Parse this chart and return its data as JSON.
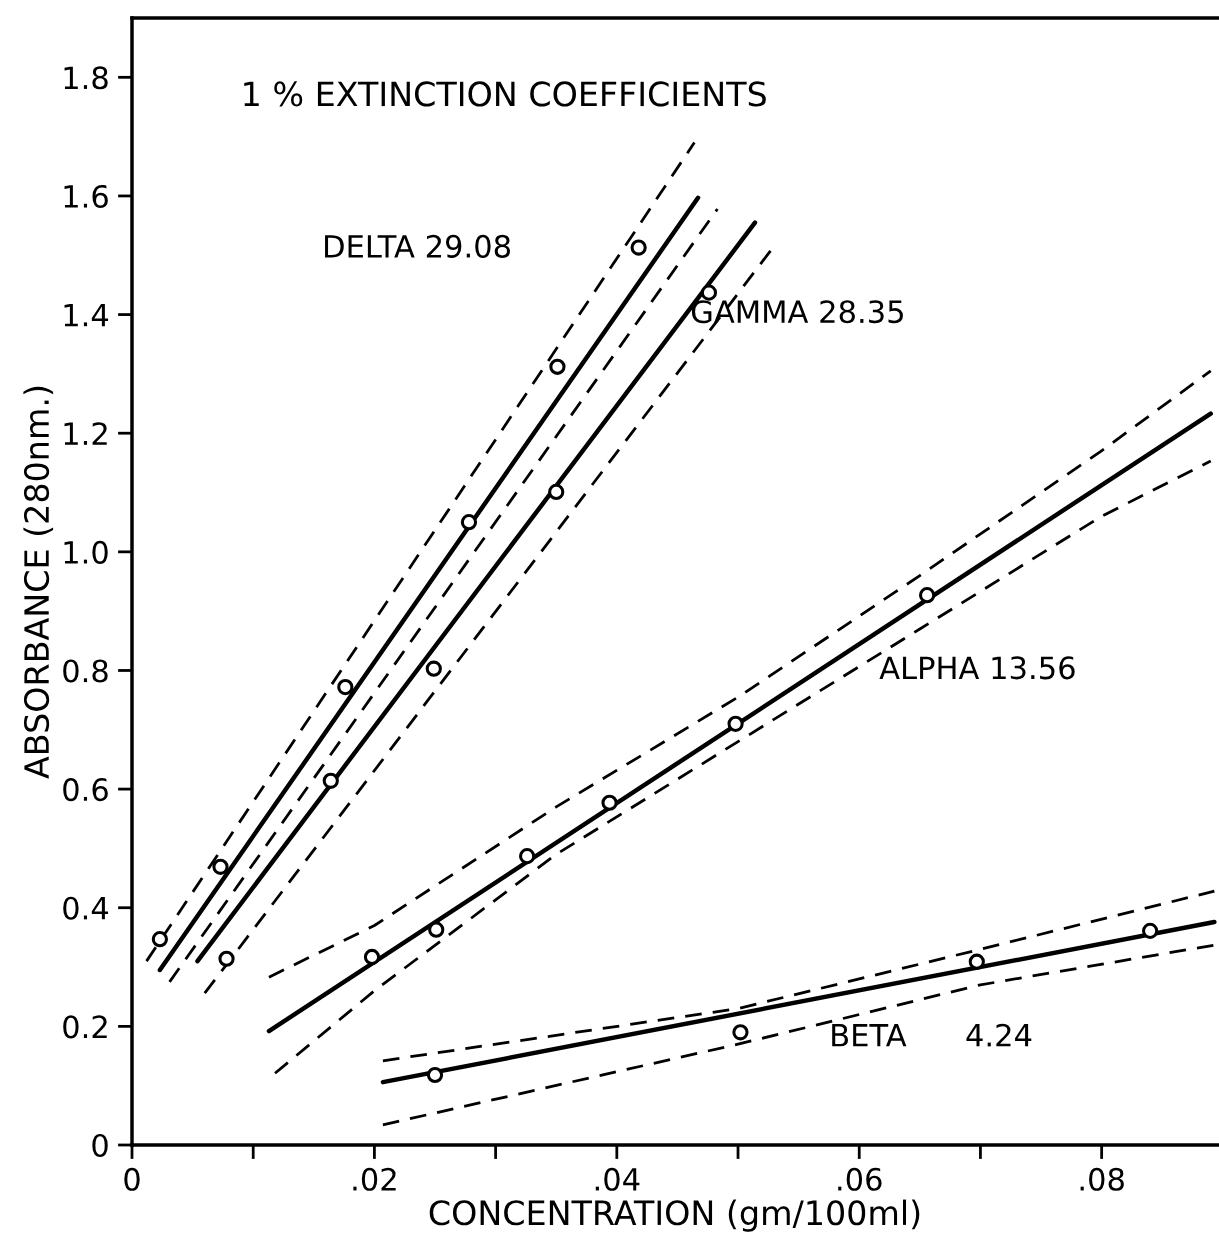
{
  "chart_data": {
    "type": "line",
    "title": "1 % EXTINCTION COEFFICIENTS",
    "xlabel": "CONCENTRATION (gm/100ml)",
    "ylabel": "ABSORBANCE (280nm.)",
    "xlim": [
      0,
      0.0896
    ],
    "ylim": [
      0,
      1.9
    ],
    "xticks": [
      {
        "value": 0,
        "label": "0"
      },
      {
        "value": 0.01,
        "label": null
      },
      {
        "value": 0.02,
        "label": ".02"
      },
      {
        "value": 0.03,
        "label": null
      },
      {
        "value": 0.04,
        "label": ".04"
      },
      {
        "value": 0.05,
        "label": null
      },
      {
        "value": 0.06,
        "label": ".06"
      },
      {
        "value": 0.07,
        "label": null
      },
      {
        "value": 0.08,
        "label": ".08"
      }
    ],
    "yticks": [
      0,
      0.2,
      0.4,
      0.6,
      0.8,
      {
        "value": 1,
        "label": "1.0"
      },
      1.2,
      1.4,
      1.6,
      1.8
    ],
    "grid": false,
    "legend": false,
    "series": [
      {
        "line_style": "solid",
        "color": "#000000",
        "x": [
          0.0023,
          0.0467
        ],
        "values": [
          0.295,
          1.597
        ]
      },
      {
        "line_style": "dashed",
        "color": "#000000",
        "x": [
          0.0012,
          0.0464
        ],
        "values": [
          0.31,
          1.69
        ]
      },
      {
        "line_style": "dashed",
        "color": "#000000",
        "x": [
          0.0031,
          0.0483
        ],
        "values": [
          0.275,
          1.578
        ]
      },
      {
        "type": "scatter",
        "marker": "circle",
        "color": "#000000",
        "x": [
          0.0023,
          0.0073,
          0.0176,
          0.0278,
          0.0351,
          0.0418
        ],
        "values": [
          0.347,
          0.469,
          0.772,
          1.05,
          1.312,
          1.513
        ]
      },
      {
        "line_style": "solid",
        "color": "#000000",
        "x": [
          0.0054,
          0.0514
        ],
        "values": [
          0.31,
          1.555
        ]
      },
      {
        "line_style": "dashed",
        "color": "#000000",
        "x": [
          0.006,
          0.0527
        ],
        "values": [
          0.256,
          1.508
        ]
      },
      {
        "type": "scatter",
        "marker": "circle",
        "color": "#000000",
        "x": [
          0.0078,
          0.0164,
          0.0249,
          0.035,
          0.0476
        ],
        "values": [
          0.314,
          0.614,
          0.803,
          1.101,
          1.437
        ]
      },
      {
        "line_style": "solid",
        "color": "#000000",
        "x": [
          0.0113,
          0.089
        ],
        "values": [
          0.192,
          1.233
        ]
      },
      {
        "line_style": "dashed",
        "color": "#000000",
        "x": [
          0.0113,
          0.02,
          0.035,
          0.05,
          0.065,
          0.0799,
          0.089
        ],
        "values": [
          0.283,
          0.37,
          0.57,
          0.755,
          0.96,
          1.169,
          1.305
        ]
      },
      {
        "line_style": "dashed",
        "color": "#000000",
        "x": [
          0.0118,
          0.02,
          0.035,
          0.05,
          0.065,
          0.08,
          0.089
        ],
        "values": [
          0.121,
          0.26,
          0.49,
          0.68,
          0.87,
          1.06,
          1.153
        ]
      },
      {
        "type": "scatter",
        "marker": "circle",
        "color": "#000000",
        "x": [
          0.0198,
          0.0251,
          0.0326,
          0.0394,
          0.0498,
          0.0656
        ],
        "values": [
          0.317,
          0.363,
          0.487,
          0.577,
          0.71,
          0.927
        ]
      },
      {
        "line_style": "solid",
        "color": "#000000",
        "x": [
          0.0207,
          0.0893
        ],
        "values": [
          0.106,
          0.376
        ]
      },
      {
        "line_style": "dashed",
        "color": "#000000",
        "x": [
          0.0207,
          0.05,
          0.07,
          0.0893
        ],
        "values": [
          0.142,
          0.23,
          0.33,
          0.428
        ]
      },
      {
        "line_style": "dashed",
        "color": "#000000",
        "x": [
          0.0207,
          0.05,
          0.07,
          0.0893
        ],
        "values": [
          0.034,
          0.17,
          0.27,
          0.337
        ]
      },
      {
        "type": "scatter",
        "marker": "circle",
        "color": "#000000",
        "x": [
          0.025,
          0.0502,
          0.0697,
          0.084
        ],
        "values": [
          0.118,
          0.19,
          0.309,
          0.361
        ]
      }
    ],
    "annotations": [
      "DELTA 29.08",
      "GAMMA 28.35",
      "ALPHA 13.56",
      "BETA      4.24"
    ]
  }
}
